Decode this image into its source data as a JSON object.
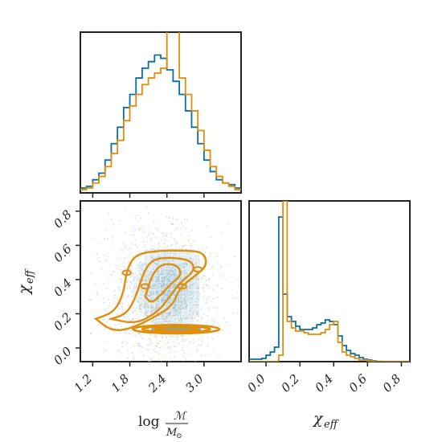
{
  "colors": {
    "blue": "#0a6ea5",
    "orange": "#e08e0b",
    "frame": "#222222",
    "scatter_blue": "#9ec5e6",
    "scatter_orange": "#f3c98a"
  },
  "labels": {
    "xlabel_main": "log",
    "xlabel_frac_num": "ℳ",
    "xlabel_frac_den": "M",
    "xlabel_frac_den_sub": "⊙",
    "ylabel_chi_main": "χ",
    "ylabel_chi_sub": "eff",
    "xlabel_chi_main": "χ",
    "xlabel_chi_sub": "eff"
  },
  "chart_data": [
    {
      "type": "histogram",
      "panel": "top-left",
      "x_range": [
        1.0,
        3.6
      ],
      "bin_width": 0.1,
      "series": [
        {
          "color": "blue",
          "values": [
            0.3,
            0.4,
            0.8,
            1.2,
            2.0,
            3.0,
            4.0,
            5.2,
            6.0,
            7.0,
            7.6,
            8.0,
            8.4,
            8.2,
            7.5,
            6.8,
            6.0,
            5.0,
            4.0,
            3.0,
            2.0,
            1.3,
            0.8,
            0.6,
            0.5,
            0.3
          ]
        },
        {
          "color": "orange",
          "values": [
            0.2,
            0.3,
            0.6,
            1.0,
            1.6,
            2.4,
            3.2,
            4.4,
            5.3,
            6.0,
            6.6,
            7.0,
            7.3,
            7.6,
            9.9,
            9.9,
            7.0,
            6.0,
            5.0,
            3.8,
            2.6,
            1.6,
            1.0,
            0.6,
            0.4,
            0.2
          ]
        }
      ],
      "xticks": [
        "1.2",
        "1.8",
        "2.4",
        "3.0"
      ]
    },
    {
      "type": "scatter",
      "panel": "bottom-left",
      "xlabel": "log ℳ/M⊙",
      "ylabel": "χeff",
      "xlim": [
        1.0,
        3.6
      ],
      "ylim": [
        -0.08,
        0.86
      ],
      "xticks": [
        "1.2",
        "1.8",
        "2.4",
        "3.0"
      ],
      "yticks": [
        "0.0",
        "0.2",
        "0.4",
        "0.6",
        "0.8"
      ]
    },
    {
      "type": "histogram",
      "panel": "bottom-right",
      "xlabel": "χeff",
      "x_range": [
        -0.1,
        0.85
      ],
      "bin_width": 0.025,
      "series": [
        {
          "color": "blue",
          "values": [
            0.15,
            0.15,
            0.15,
            0.2,
            0.4,
            0.6,
            0.9,
            9.0,
            4.2,
            2.8,
            2.5,
            2.2,
            2.0,
            2.0,
            2.0,
            2.1,
            2.3,
            2.4,
            2.6,
            2.5,
            2.3,
            1.6,
            1.0,
            0.7,
            0.5,
            0.4,
            0.25,
            0.15,
            0.1,
            0.05,
            0.02,
            0.01,
            0.01,
            0.01,
            0.01,
            0.01,
            0.01,
            0.01
          ]
        },
        {
          "color": "orange",
          "values": [
            0.0,
            0.0,
            0.0,
            0.0,
            0.0,
            0.0,
            0.0,
            0.4,
            10.0,
            2.5,
            2.1,
            1.9,
            1.9,
            1.8,
            1.7,
            1.7,
            1.7,
            1.8,
            2.0,
            2.3,
            2.5,
            1.2,
            0.6,
            0.4,
            0.3,
            0.2,
            0.1,
            0.1,
            0.05,
            0.02,
            0.0,
            0.0,
            0.0,
            0.0,
            0.0,
            0.0,
            0.0,
            0.0
          ]
        }
      ],
      "xticks": [
        "0.0",
        "0.2",
        "0.4",
        "0.6",
        "0.8"
      ]
    }
  ]
}
